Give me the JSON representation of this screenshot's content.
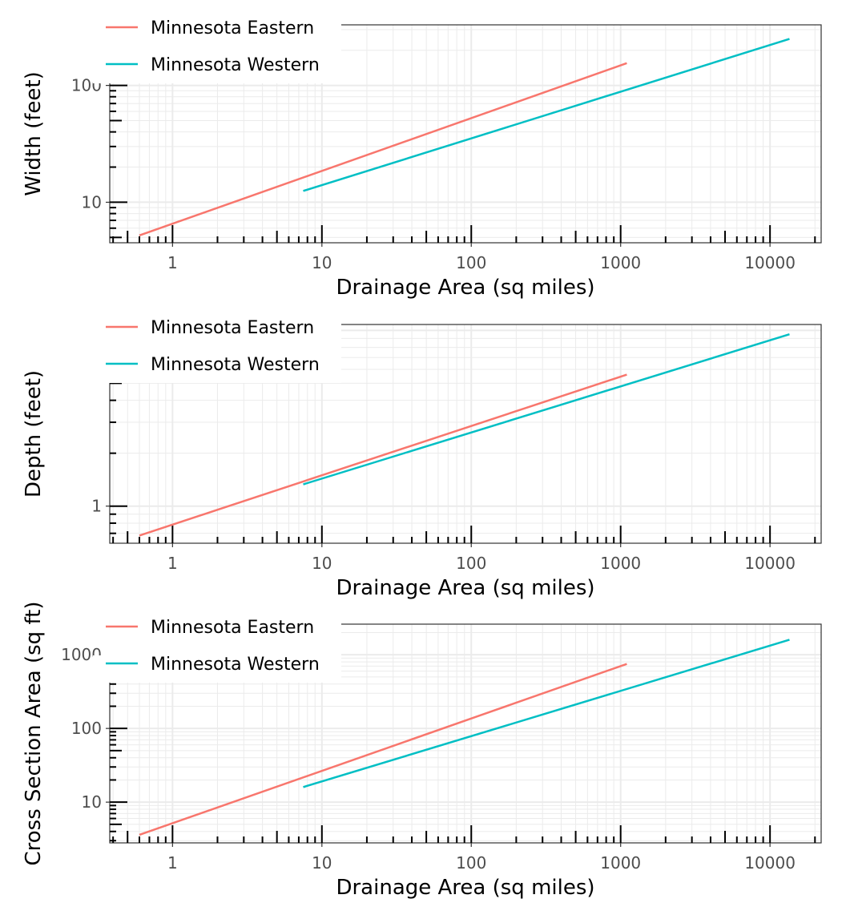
{
  "chart_data": [
    {
      "type": "line",
      "xlabel": "Drainage Area (sq miles)",
      "ylabel": "Width (feet)",
      "x_scale": "log",
      "y_scale": "log",
      "xlim": [
        0.38,
        22000
      ],
      "ylim": [
        4.5,
        330
      ],
      "x_ticks": [
        {
          "value": 1,
          "label": "1"
        },
        {
          "value": 10,
          "label": "10"
        },
        {
          "value": 100,
          "label": "100"
        },
        {
          "value": 1000,
          "label": "1000"
        },
        {
          "value": 10000,
          "label": "10000"
        }
      ],
      "y_ticks": [
        {
          "value": 10,
          "label": "10"
        },
        {
          "value": 100,
          "label": "100"
        }
      ],
      "grid": true,
      "legend": {
        "placement": "top-left",
        "items": [
          "Minnesota Eastern",
          "Minnesota Western"
        ]
      },
      "series": [
        {
          "name": "Minnesota Eastern",
          "color": "#F8766D",
          "x": [
            0.6,
            1100
          ],
          "y": [
            5.2,
            155
          ]
        },
        {
          "name": "Minnesota Western",
          "color": "#00BFC4",
          "x": [
            7.5,
            13500
          ],
          "y": [
            12.5,
            250
          ]
        }
      ]
    },
    {
      "type": "line",
      "xlabel": "Drainage Area (sq miles)",
      "ylabel": "Depth (feet)",
      "x_scale": "log",
      "y_scale": "log",
      "xlim": [
        0.38,
        22000
      ],
      "ylim": [
        0.615,
        10.8
      ],
      "x_ticks": [
        {
          "value": 1,
          "label": "1"
        },
        {
          "value": 10,
          "label": "10"
        },
        {
          "value": 100,
          "label": "100"
        },
        {
          "value": 1000,
          "label": "1000"
        },
        {
          "value": 10000,
          "label": "10000"
        }
      ],
      "y_ticks": [
        {
          "value": 1,
          "label": "1"
        }
      ],
      "grid": true,
      "legend": {
        "placement": "top-left",
        "items": [
          "Minnesota Eastern",
          "Minnesota Western"
        ]
      },
      "series": [
        {
          "name": "Minnesota Eastern",
          "color": "#F8766D",
          "x": [
            0.6,
            1100
          ],
          "y": [
            0.68,
            5.6
          ]
        },
        {
          "name": "Minnesota Western",
          "color": "#00BFC4",
          "x": [
            7.5,
            13500
          ],
          "y": [
            1.33,
            9.5
          ]
        }
      ]
    },
    {
      "type": "line",
      "xlabel": "Drainage Area (sq miles)",
      "ylabel": "Cross Section Area (sq ft)",
      "x_scale": "log",
      "y_scale": "log",
      "xlim": [
        0.38,
        22000
      ],
      "ylim": [
        2.8,
        2600
      ],
      "x_ticks": [
        {
          "value": 1,
          "label": "1"
        },
        {
          "value": 10,
          "label": "10"
        },
        {
          "value": 100,
          "label": "100"
        },
        {
          "value": 1000,
          "label": "1000"
        },
        {
          "value": 10000,
          "label": "10000"
        }
      ],
      "y_ticks": [
        {
          "value": 10,
          "label": "10"
        },
        {
          "value": 100,
          "label": "100"
        },
        {
          "value": 1000,
          "label": "1000"
        }
      ],
      "grid": true,
      "legend": {
        "placement": "top-left",
        "items": [
          "Minnesota Eastern",
          "Minnesota Western"
        ]
      },
      "series": [
        {
          "name": "Minnesota Eastern",
          "color": "#F8766D",
          "x": [
            0.6,
            1100
          ],
          "y": [
            3.6,
            750
          ]
        },
        {
          "name": "Minnesota Western",
          "color": "#00BFC4",
          "x": [
            7.5,
            13500
          ],
          "y": [
            16,
            1600
          ]
        }
      ]
    }
  ]
}
